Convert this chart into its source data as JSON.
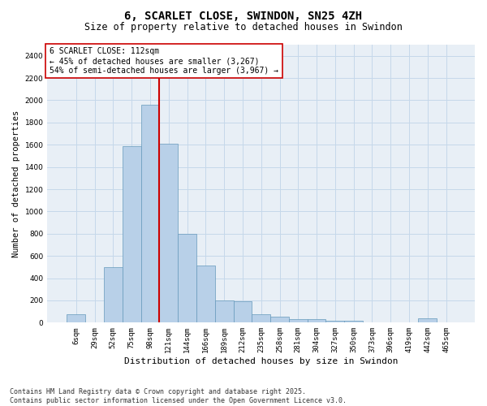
{
  "title": "6, SCARLET CLOSE, SWINDON, SN25 4ZH",
  "subtitle": "Size of property relative to detached houses in Swindon",
  "xlabel": "Distribution of detached houses by size in Swindon",
  "ylabel": "Number of detached properties",
  "footer_line1": "Contains HM Land Registry data © Crown copyright and database right 2025.",
  "footer_line2": "Contains public sector information licensed under the Open Government Licence v3.0.",
  "annotation_line1": "6 SCARLET CLOSE: 112sqm",
  "annotation_line2": "← 45% of detached houses are smaller (3,267)",
  "annotation_line3": "54% of semi-detached houses are larger (3,967) →",
  "bar_categories": [
    "6sqm",
    "29sqm",
    "52sqm",
    "75sqm",
    "98sqm",
    "121sqm",
    "144sqm",
    "166sqm",
    "189sqm",
    "212sqm",
    "235sqm",
    "258sqm",
    "281sqm",
    "304sqm",
    "327sqm",
    "350sqm",
    "373sqm",
    "396sqm",
    "419sqm",
    "442sqm",
    "465sqm"
  ],
  "bar_values": [
    75,
    0,
    500,
    1590,
    1960,
    1610,
    800,
    510,
    200,
    195,
    75,
    50,
    35,
    30,
    20,
    15,
    0,
    0,
    0,
    40,
    0
  ],
  "bar_color": "#b8d0e8",
  "bar_edge_color": "#6699bb",
  "vline_x_index": 4,
  "vline_color": "#cc0000",
  "annotation_box_edge": "#cc0000",
  "grid_color": "#c5d8ea",
  "bg_color": "#e8eff6",
  "ylim": [
    0,
    2500
  ],
  "yticks": [
    0,
    200,
    400,
    600,
    800,
    1000,
    1200,
    1400,
    1600,
    1800,
    2000,
    2200,
    2400
  ],
  "title_fontsize": 10,
  "subtitle_fontsize": 8.5,
  "ylabel_fontsize": 7.5,
  "xlabel_fontsize": 8,
  "tick_fontsize": 6.5,
  "annotation_fontsize": 7,
  "footer_fontsize": 6
}
